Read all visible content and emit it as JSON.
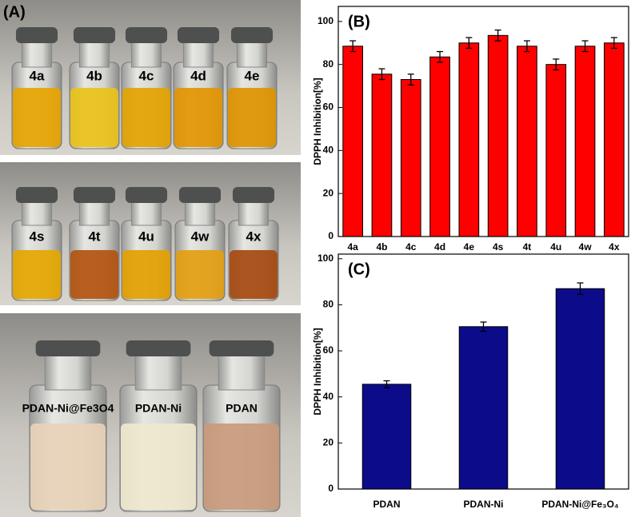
{
  "photo_panel": {
    "label": "(A)",
    "photos": [
      {
        "labels": [
          "4a",
          "4b",
          "4c",
          "4d",
          "4e"
        ]
      },
      {
        "labels": [
          "4s",
          "4t",
          "4u",
          "4w",
          "4x"
        ]
      },
      {
        "labels": [
          "PDAN-Ni@Fe3O4",
          "PDAN-Ni",
          "PDAN"
        ]
      }
    ]
  },
  "chart_data": [
    {
      "type": "bar",
      "label": "(B)",
      "ylabel": "DPPH Inhibition[%]",
      "categories": [
        "4a",
        "4b",
        "4c",
        "4d",
        "4e",
        "4s",
        "4t",
        "4u",
        "4w",
        "4x"
      ],
      "values": [
        88.5,
        75.5,
        73,
        83.5,
        90,
        93.5,
        88.5,
        80,
        88.5,
        90
      ],
      "errors": [
        2.5,
        2.5,
        2.5,
        2.5,
        2.5,
        2.5,
        2.5,
        2.5,
        2.5,
        2.5
      ],
      "color": "#ff0000",
      "ylim": [
        0,
        107
      ],
      "yticks": [
        0,
        20,
        40,
        60,
        80,
        100
      ]
    },
    {
      "type": "bar",
      "label": "(C)",
      "ylabel": "DPPH Inhibition[%]",
      "categories": [
        "PDAN",
        "PDAN-Ni",
        "PDAN-Ni@Fe₃O₄"
      ],
      "values": [
        45.5,
        70.5,
        87
      ],
      "errors": [
        1.5,
        2,
        2.5
      ],
      "color": "#0c0c8a",
      "ylim": [
        0,
        102
      ],
      "yticks": [
        0,
        20,
        40,
        60,
        80,
        100
      ]
    }
  ]
}
